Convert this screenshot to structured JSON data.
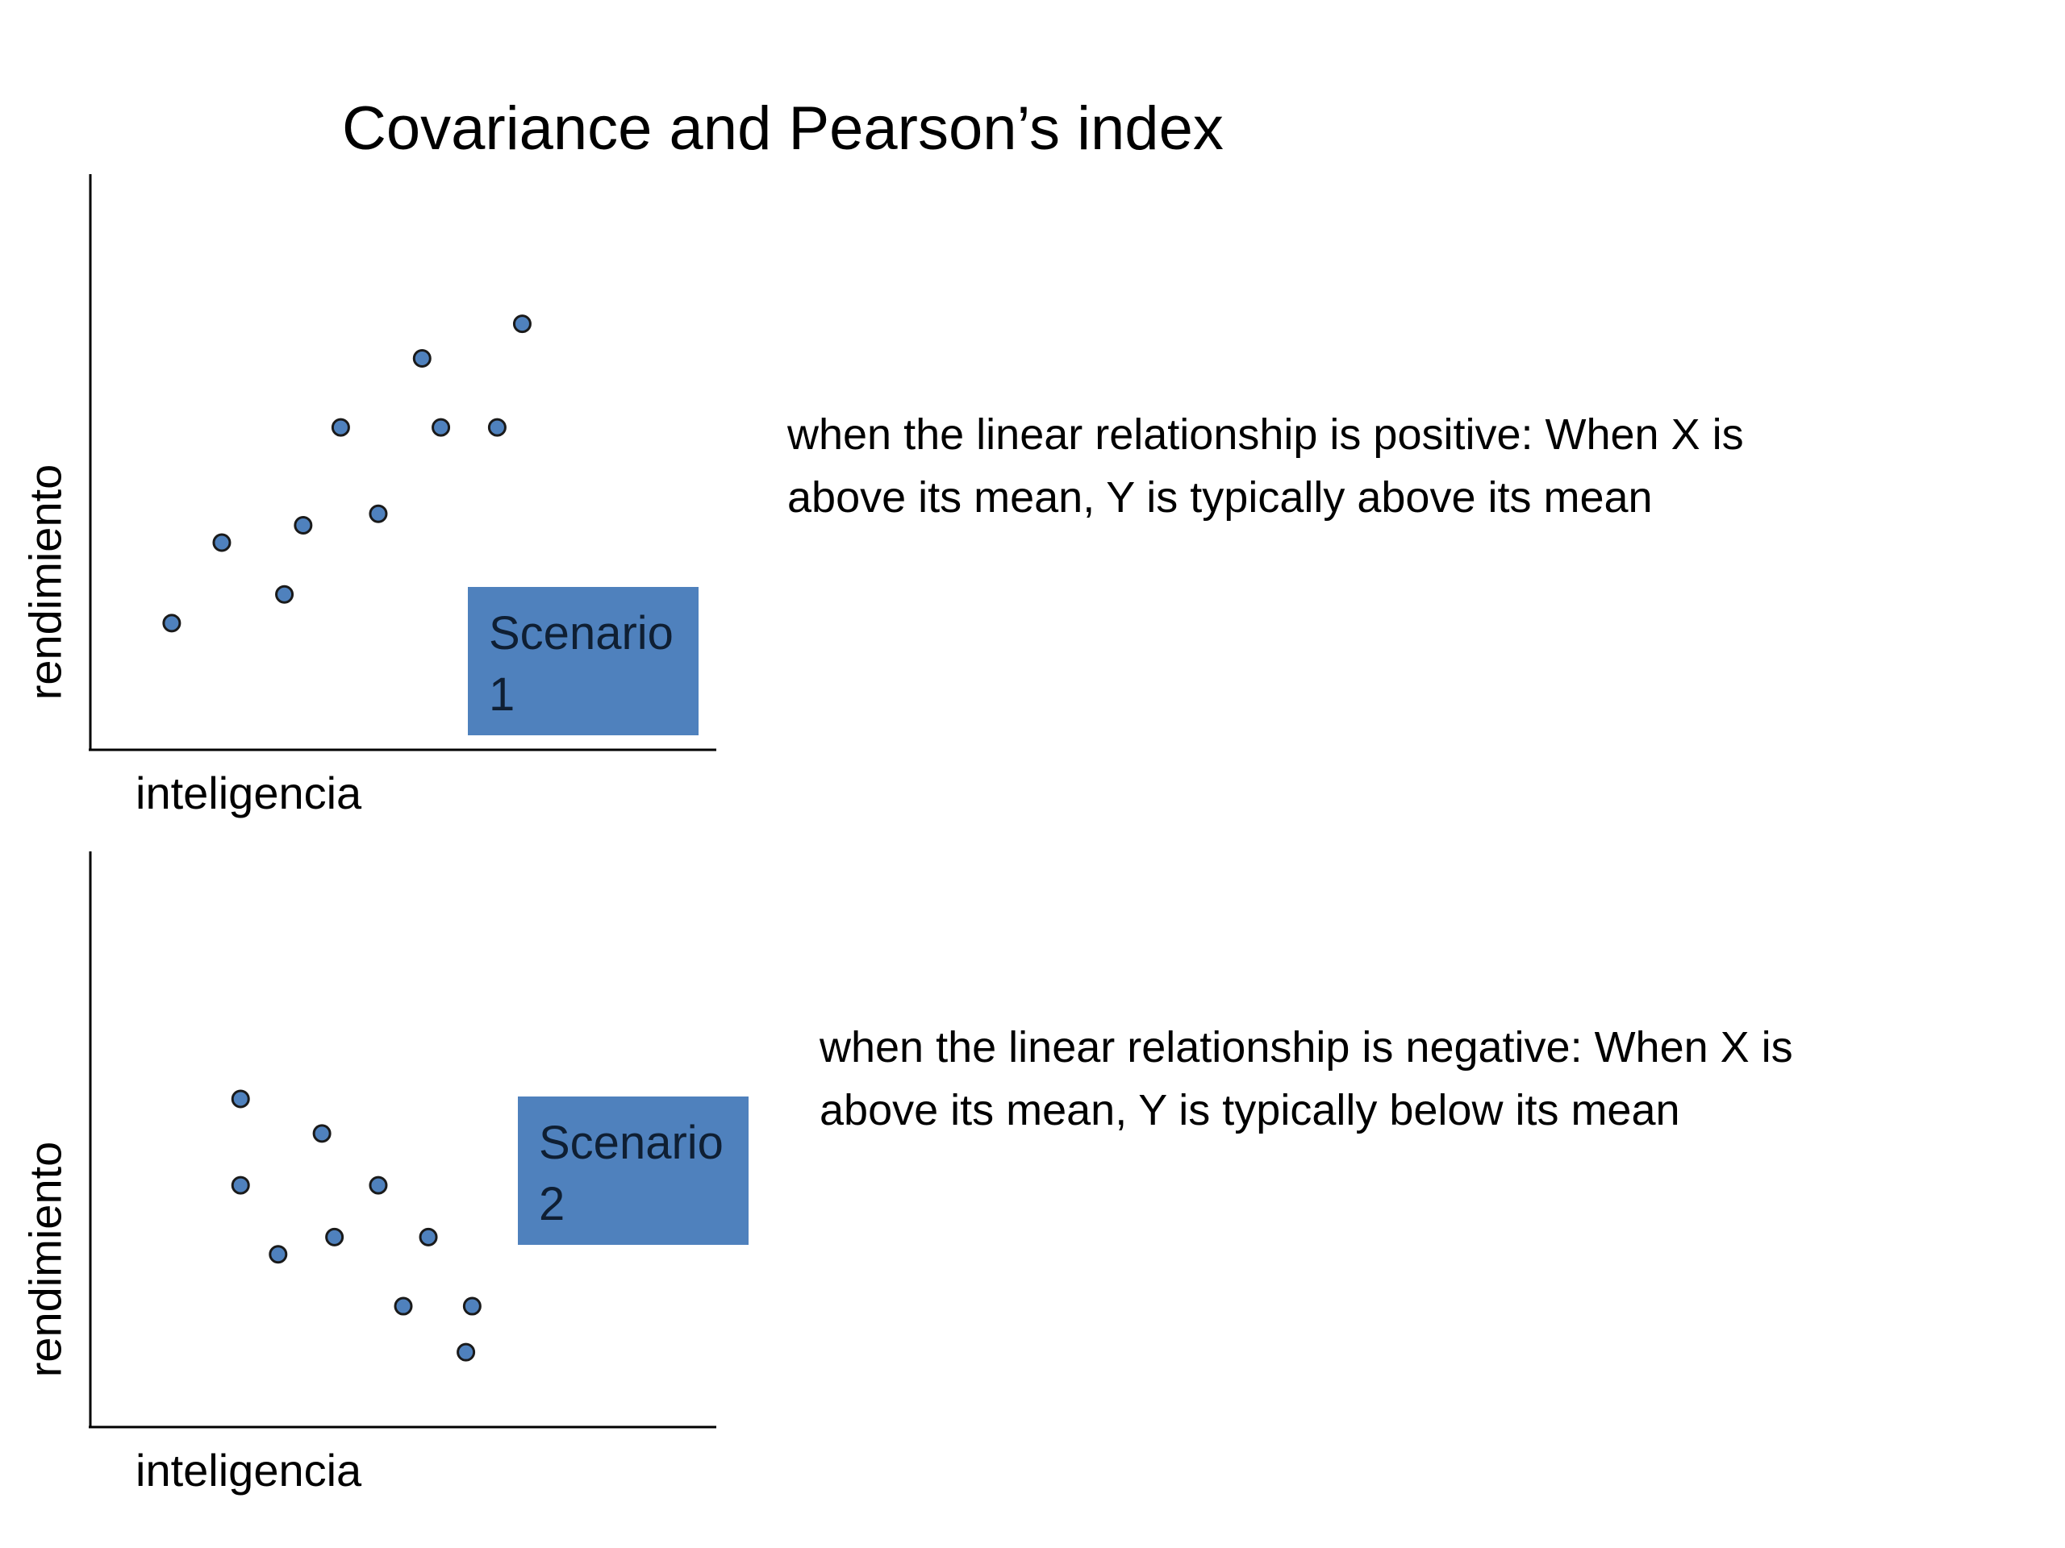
{
  "title": "Covariance and Pearson’s index",
  "chart_data": [
    {
      "type": "scatter",
      "xlabel": "inteligencia",
      "ylabel": "rendimiento",
      "xlim": [
        0,
        10
      ],
      "ylim": [
        0,
        10
      ],
      "points": [
        {
          "x": 1.3,
          "y": 2.2
        },
        {
          "x": 2.1,
          "y": 3.6
        },
        {
          "x": 3.1,
          "y": 2.7
        },
        {
          "x": 3.4,
          "y": 3.9
        },
        {
          "x": 4.0,
          "y": 5.6
        },
        {
          "x": 4.6,
          "y": 4.1
        },
        {
          "x": 5.3,
          "y": 6.8
        },
        {
          "x": 5.6,
          "y": 5.6
        },
        {
          "x": 6.5,
          "y": 5.6
        },
        {
          "x": 6.9,
          "y": 7.4
        }
      ],
      "scenario": {
        "line1": "Scenario",
        "line2": "1"
      },
      "description": {
        "line1": "when the linear relationship is positive: When X is",
        "line2": "above its mean, Y is typically above its mean"
      },
      "colors": {
        "marker": "#4f81bd",
        "box": "#4f81bd"
      }
    },
    {
      "type": "scatter",
      "xlabel": "inteligencia",
      "ylabel": "rendimiento",
      "xlim": [
        0,
        10
      ],
      "ylim": [
        0,
        10
      ],
      "points": [
        {
          "x": 2.4,
          "y": 5.7
        },
        {
          "x": 2.4,
          "y": 4.2
        },
        {
          "x": 3.7,
          "y": 5.1
        },
        {
          "x": 3.0,
          "y": 3.0
        },
        {
          "x": 3.9,
          "y": 3.3
        },
        {
          "x": 4.6,
          "y": 4.2
        },
        {
          "x": 5.4,
          "y": 3.3
        },
        {
          "x": 5.0,
          "y": 2.1
        },
        {
          "x": 6.1,
          "y": 2.1
        },
        {
          "x": 6.0,
          "y": 1.3
        }
      ],
      "scenario": {
        "line1": "Scenario",
        "line2": "2"
      },
      "description": {
        "line1": "when the linear relationship is negative: When X is",
        "line2": "above its mean, Y is typically below its mean"
      },
      "colors": {
        "marker": "#4f81bd",
        "box": "#4f81bd"
      }
    }
  ]
}
